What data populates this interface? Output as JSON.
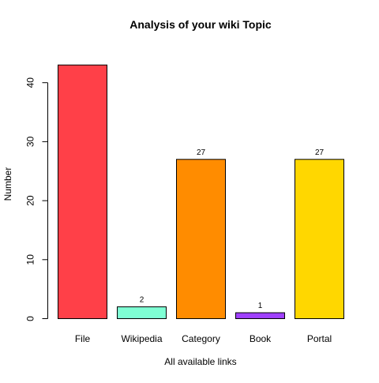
{
  "chart_data": {
    "type": "bar",
    "title": "Analysis of your wiki Topic",
    "xlabel": "All available links",
    "ylabel": "Number",
    "categories": [
      "File",
      "Wikipedia",
      "Category",
      "Book",
      "Portal"
    ],
    "values": [
      43,
      2,
      27,
      1,
      27
    ],
    "value_labels": [
      "",
      "2",
      "27",
      "1",
      "27"
    ],
    "colors": [
      "#FF4048",
      "#7FFFD4",
      "#FF8C00",
      "#A040FF",
      "#FFD700"
    ],
    "ylim": [
      0,
      43
    ],
    "yticks": [
      0,
      10,
      20,
      30,
      40
    ],
    "grid": false,
    "legend": "none"
  }
}
